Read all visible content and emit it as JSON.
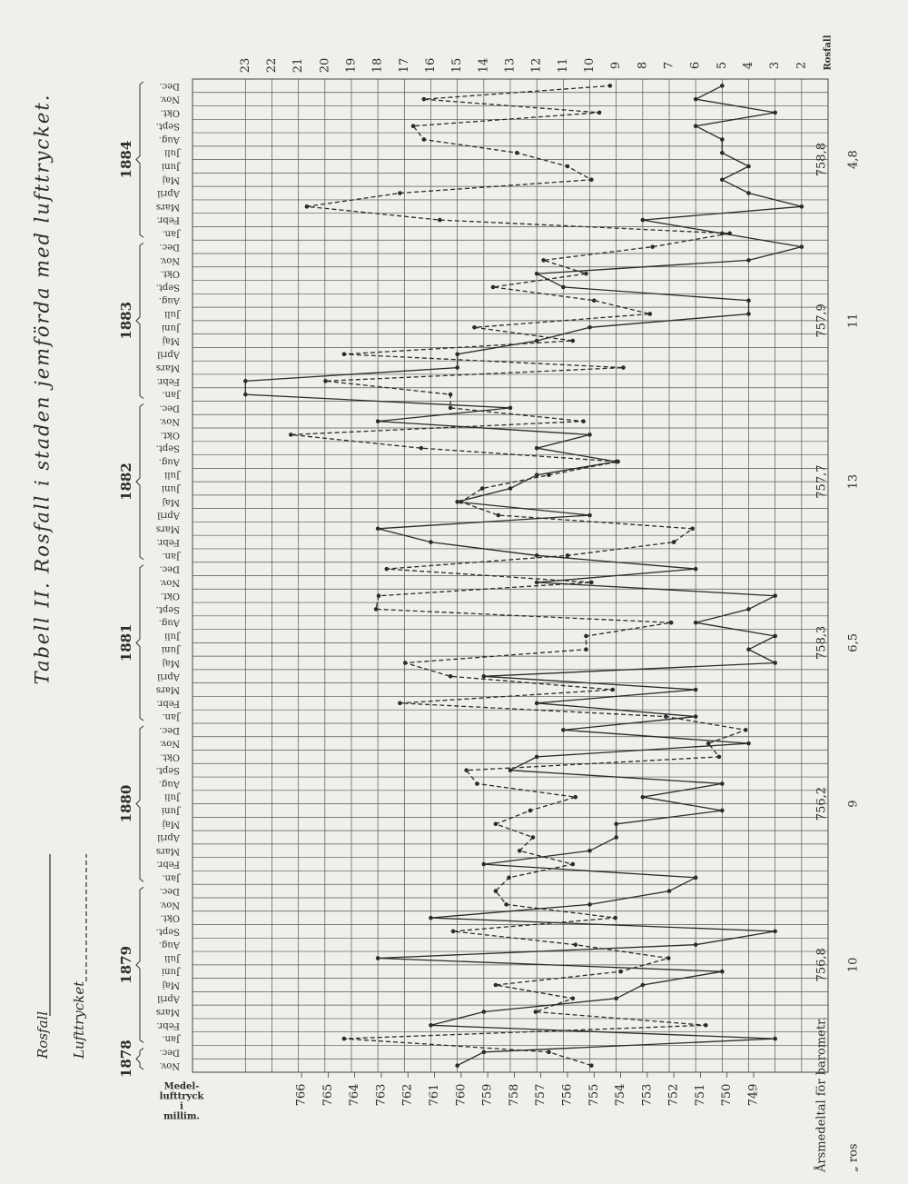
{
  "chart_data": {
    "type": "line",
    "title": "Tabell II.  Rosfall i staden jemförda med lufttrycket.",
    "categories": [
      "Nov.",
      "Dec.",
      "Jan.",
      "Febr.",
      "Mars",
      "April",
      "Maj",
      "Juni",
      "Juli",
      "Aug.",
      "Sept.",
      "Okt.",
      "Nov.",
      "Dec.",
      "Jan.",
      "Febr.",
      "Mars",
      "April",
      "Maj",
      "Juni",
      "Juli",
      "Aug.",
      "Sept.",
      "Okt.",
      "Nov.",
      "Dec.",
      "Jan.",
      "Febr.",
      "Mars",
      "April",
      "Maj",
      "Juni",
      "Juli",
      "Aug.",
      "Sept.",
      "Okt.",
      "Nov.",
      "Dec.",
      "Jan.",
      "Febr.",
      "Mars",
      "April",
      "Maj",
      "Juni",
      "Juli",
      "Aug.",
      "Sept.",
      "Okt.",
      "Nov.",
      "Dec.",
      "Jan.",
      "Febr.",
      "Mars",
      "April",
      "Maj",
      "Juni",
      "Juli",
      "Aug.",
      "Sept.",
      "Okt.",
      "Nov.",
      "Dec.",
      "Jan.",
      "Febr.",
      "Mars",
      "April",
      "Maj",
      "Juni",
      "Juli",
      "Aug.",
      "Sept.",
      "Okt.",
      "Nov.",
      "Dec."
    ],
    "years": [
      "1878",
      "1879",
      "1880",
      "1881",
      "1882",
      "1883",
      "1884"
    ],
    "series": [
      {
        "name": "Rosfall",
        "style": "solid",
        "color": "#2b2b2b",
        "values": [
          15,
          14,
          3,
          16,
          14,
          9,
          8,
          5,
          18,
          6,
          3,
          16,
          10,
          7,
          6,
          14,
          10,
          9,
          9,
          5,
          8,
          5,
          13,
          12,
          4,
          11,
          6,
          12,
          6,
          14,
          3,
          4,
          3,
          6,
          4,
          3,
          12,
          6,
          12,
          16,
          18,
          10,
          15,
          13,
          12,
          9,
          12,
          10,
          18,
          13,
          23,
          23,
          15,
          15,
          12,
          10,
          4,
          4,
          11,
          12,
          4,
          2,
          5,
          8,
          2,
          4,
          5,
          4,
          5,
          5,
          6,
          3,
          6,
          5
        ]
      },
      {
        "name": "Lufttrycket",
        "style": "dashed",
        "color": "#2b2b2b",
        "axis": "y2",
        "values": [
          755.1,
          756.7,
          764.4,
          750.8,
          757.2,
          755.8,
          758.7,
          754.0,
          752.2,
          755.7,
          760.3,
          754.2,
          758.3,
          758.7,
          758.2,
          755.8,
          757.8,
          757.3,
          758.7,
          757.4,
          755.7,
          759.4,
          759.8,
          750.3,
          750.7,
          749.3,
          752.3,
          762.3,
          754.3,
          760.4,
          762.1,
          755.3,
          755.3,
          752.1,
          763.2,
          763.1,
          755.1,
          762.8,
          756.0,
          752.0,
          751.3,
          758.6,
          760.0,
          759.2,
          756.7,
          754.1,
          761.5,
          766.4,
          755.4,
          760.4,
          760.4,
          765.1,
          753.9,
          764.4,
          755.8,
          759.5,
          752.9,
          755.0,
          758.8,
          755.3,
          756.9,
          752.8,
          749.9,
          760.8,
          765.8,
          762.3,
          755.1,
          756.0,
          757.9,
          761.4,
          761.8,
          754.8,
          761.4,
          754.4
        ]
      }
    ],
    "y_label": "Rosfall",
    "ylim": [
      1,
      25
    ],
    "yticks": [
      2,
      3,
      4,
      5,
      6,
      7,
      8,
      9,
      10,
      11,
      12,
      13,
      14,
      15,
      16,
      17,
      18,
      19,
      20,
      21,
      22,
      23
    ],
    "y2_label": [
      "Medel-",
      "lufttryck",
      "i",
      "millim."
    ],
    "y2lim": [
      746.2,
      770.1
    ],
    "y2ticks": [
      749,
      750,
      751,
      752,
      753,
      754,
      755,
      756,
      757,
      758,
      759,
      760,
      761,
      762,
      763,
      764,
      765,
      766
    ],
    "grid": true,
    "annual_means": {
      "label": "Årsmedeltal för barometr.",
      "ros_label": "„ ros",
      "barometer": [
        {
          "value": 756.8,
          "label": "756,8"
        },
        {
          "value": 756.2,
          "label": "756,2"
        },
        {
          "value": 758.3,
          "label": "758,3"
        },
        {
          "value": 757.7,
          "label": "757,7"
        },
        {
          "value": 757.9,
          "label": "757,9"
        },
        {
          "value": 758.8,
          "label": "758,8"
        }
      ],
      "ros": [
        10,
        9,
        {
          "value": 6.5,
          "label": "6,5"
        },
        13,
        11,
        {
          "value": 4.8,
          "label": "4,8"
        }
      ]
    }
  }
}
